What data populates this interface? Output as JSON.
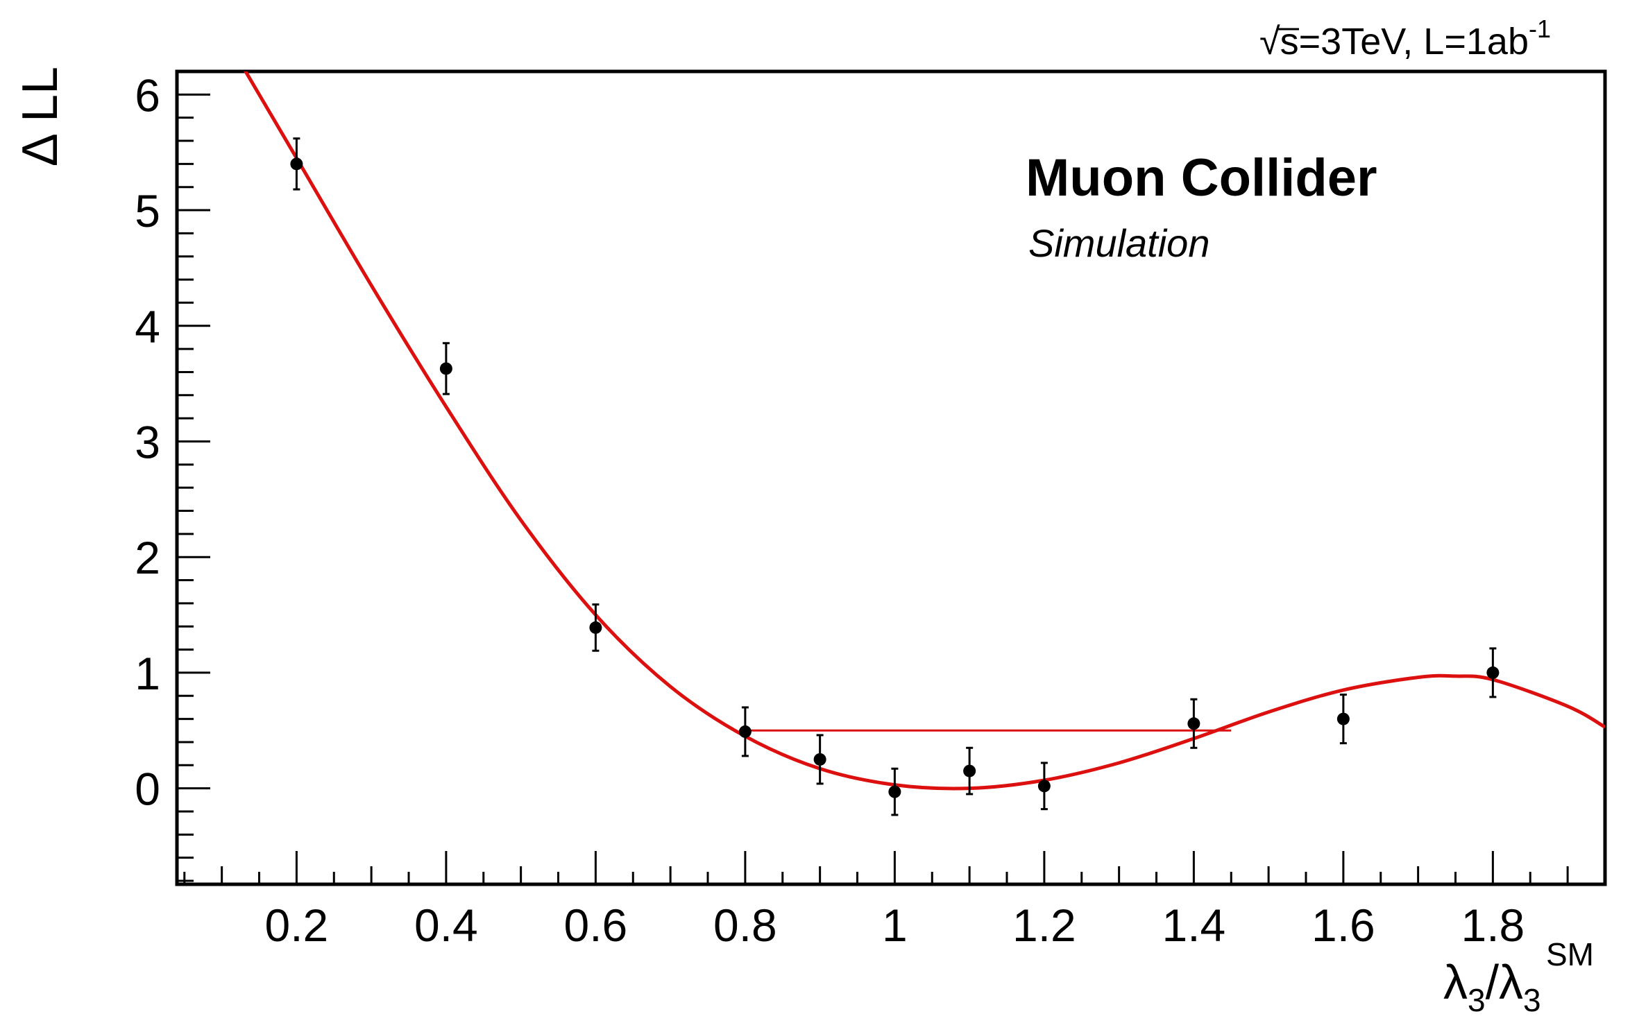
{
  "chart_data": {
    "type": "scatter",
    "header": {
      "sqrt_symbol": "√",
      "energy": "s=3TeV, L=1ab",
      "lumi_exponent": "-1"
    },
    "annotation": {
      "title": "Muon Collider",
      "subtitle": "Simulation"
    },
    "ylabel": "Δ LL",
    "xlabel": {
      "symbol": "λ",
      "subscript": "3",
      "separator": "/",
      "superscript": "SM"
    },
    "xlim": [
      0.04,
      1.95
    ],
    "ylim": [
      -0.83,
      6.2
    ],
    "xticks": [
      0.2,
      0.4,
      0.6,
      0.8,
      1.0,
      1.2,
      1.4,
      1.6,
      1.8
    ],
    "xtick_labels": [
      "0.2",
      "0.4",
      "0.6",
      "0.8",
      "1",
      "1.2",
      "1.4",
      "1.6",
      "1.8"
    ],
    "yticks": [
      0,
      1,
      2,
      3,
      4,
      5,
      6
    ],
    "ytick_labels": [
      "0",
      "1",
      "2",
      "3",
      "4",
      "5",
      "6"
    ],
    "grid": false,
    "series": [
      {
        "kind": "points-with-errors",
        "color": "#000000",
        "x": [
          0.2,
          0.4,
          0.6,
          0.8,
          0.9,
          1.0,
          1.1,
          1.2,
          1.4,
          1.6,
          1.8
        ],
        "y": [
          5.4,
          3.63,
          1.39,
          0.49,
          0.25,
          -0.03,
          0.15,
          0.02,
          0.56,
          0.6,
          1.0
        ],
        "err": [
          0.22,
          0.22,
          0.2,
          0.21,
          0.21,
          0.2,
          0.2,
          0.2,
          0.21,
          0.21,
          0.21
        ]
      },
      {
        "kind": "fit-curve",
        "color": "#dd1010",
        "x": [
          0.13,
          0.2,
          0.3,
          0.4,
          0.5,
          0.6,
          0.7,
          0.8,
          0.9,
          1.0,
          1.1,
          1.2,
          1.3,
          1.4,
          1.5,
          1.6,
          1.7,
          1.75,
          1.8,
          1.9,
          1.95
        ],
        "y": [
          6.22,
          5.45,
          4.35,
          3.3,
          2.32,
          1.5,
          0.88,
          0.45,
          0.17,
          0.03,
          0.0,
          0.07,
          0.22,
          0.43,
          0.66,
          0.85,
          0.96,
          0.97,
          0.94,
          0.71,
          0.53
        ]
      },
      {
        "kind": "threshold-line",
        "color": "#dd1010",
        "x": [
          0.8,
          1.45
        ],
        "y": [
          0.5,
          0.5
        ]
      }
    ]
  }
}
